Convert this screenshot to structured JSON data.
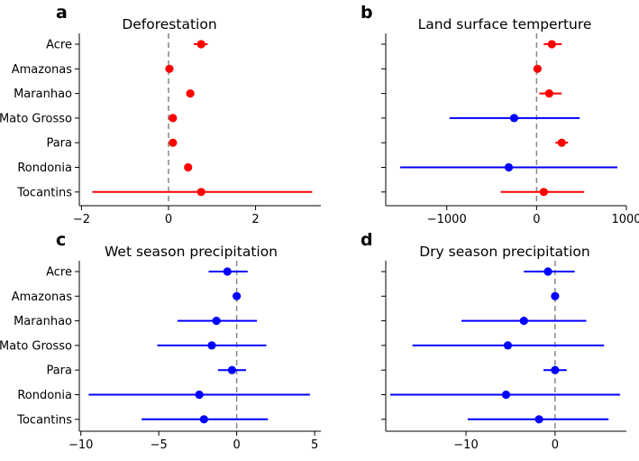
{
  "chart_data": [
    {
      "id": "a",
      "panel_letter": "a",
      "type": "scatter",
      "style": "point-with-error-bars",
      "title": "Deforestation",
      "categories": [
        "Acre",
        "Amazonas",
        "Maranhao",
        "Mato Grosso",
        "Para",
        "Rondonia",
        "Tocantins"
      ],
      "xlim": [
        -2.05,
        3.5
      ],
      "xticks": [
        -2,
        0,
        2
      ],
      "xtick_labels": [
        "−2",
        "0",
        "2"
      ],
      "show_y_labels": true,
      "points": [
        {
          "value": 0.75,
          "low": 0.58,
          "high": 0.9,
          "color": "#ff0000"
        },
        {
          "value": 0.02,
          "low": -0.02,
          "high": 0.06,
          "color": "#ff0000"
        },
        {
          "value": 0.5,
          "low": 0.46,
          "high": 0.54,
          "color": "#ff0000"
        },
        {
          "value": 0.1,
          "low": 0.06,
          "high": 0.14,
          "color": "#ff0000"
        },
        {
          "value": 0.1,
          "low": 0.06,
          "high": 0.14,
          "color": "#ff0000"
        },
        {
          "value": 0.45,
          "low": 0.41,
          "high": 0.49,
          "color": "#ff0000"
        },
        {
          "value": 0.75,
          "low": -1.75,
          "high": 3.3,
          "color": "#ff0000"
        }
      ]
    },
    {
      "id": "b",
      "panel_letter": "b",
      "type": "scatter",
      "style": "point-with-error-bars",
      "title": "Land surface temperture",
      "categories": [
        "Acre",
        "Amazonas",
        "Maranhao",
        "Mato Grosso",
        "Para",
        "Rondonia",
        "Tocantins"
      ],
      "xlim": [
        -1680,
        1000
      ],
      "xticks": [
        -1000,
        0,
        1000
      ],
      "xtick_labels": [
        "−1000",
        "0",
        "1000"
      ],
      "show_y_labels": false,
      "points": [
        {
          "value": 170,
          "low": 80,
          "high": 280,
          "color": "#ff0000"
        },
        {
          "value": 10,
          "low": -30,
          "high": 50,
          "color": "#ff0000"
        },
        {
          "value": 140,
          "low": 30,
          "high": 280,
          "color": "#ff0000"
        },
        {
          "value": -250,
          "low": -970,
          "high": 480,
          "color": "#0000ff"
        },
        {
          "value": 280,
          "low": 210,
          "high": 350,
          "color": "#ff0000"
        },
        {
          "value": -310,
          "low": -1520,
          "high": 900,
          "color": "#0000ff"
        },
        {
          "value": 80,
          "low": -400,
          "high": 530,
          "color": "#ff0000"
        }
      ]
    },
    {
      "id": "c",
      "panel_letter": "c",
      "type": "scatter",
      "style": "point-with-error-bars",
      "title": "Wet season precipitation",
      "categories": [
        "Acre",
        "Amazonas",
        "Maranhao",
        "Mato Grosso",
        "Para",
        "Rondonia",
        "Tocantins"
      ],
      "xlim": [
        -10.1,
        5.4
      ],
      "xticks": [
        -10,
        -5,
        0,
        5
      ],
      "xtick_labels": [
        "−10",
        "−5",
        "0",
        "5"
      ],
      "show_y_labels": true,
      "points": [
        {
          "value": -0.6,
          "low": -1.8,
          "high": 0.7,
          "color": "#0000ff"
        },
        {
          "value": 0.0,
          "low": -0.1,
          "high": 0.1,
          "color": "#0000ff"
        },
        {
          "value": -1.3,
          "low": -3.8,
          "high": 1.3,
          "color": "#0000ff"
        },
        {
          "value": -1.6,
          "low": -5.1,
          "high": 1.9,
          "color": "#0000ff"
        },
        {
          "value": -0.3,
          "low": -1.2,
          "high": 0.6,
          "color": "#0000ff"
        },
        {
          "value": -2.4,
          "low": -9.5,
          "high": 4.7,
          "color": "#0000ff"
        },
        {
          "value": -2.1,
          "low": -6.1,
          "high": 2.0,
          "color": "#0000ff"
        }
      ]
    },
    {
      "id": "d",
      "panel_letter": "d",
      "type": "scatter",
      "style": "point-with-error-bars",
      "title": "Dry season precipitation",
      "categories": [
        "Acre",
        "Amazonas",
        "Maranhao",
        "Mato Grosso",
        "Para",
        "Rondonia",
        "Tocantins"
      ],
      "xlim": [
        -19,
        8
      ],
      "xticks": [
        -10,
        0
      ],
      "xtick_labels": [
        "−10",
        "0"
      ],
      "show_y_labels": false,
      "points": [
        {
          "value": -0.8,
          "low": -3.5,
          "high": 2.2,
          "color": "#0000ff"
        },
        {
          "value": 0.0,
          "low": -0.2,
          "high": 0.2,
          "color": "#0000ff"
        },
        {
          "value": -3.5,
          "low": -10.5,
          "high": 3.5,
          "color": "#0000ff"
        },
        {
          "value": -5.3,
          "low": -16.0,
          "high": 5.5,
          "color": "#0000ff"
        },
        {
          "value": 0.0,
          "low": -1.3,
          "high": 1.3,
          "color": "#0000ff"
        },
        {
          "value": -5.5,
          "low": -18.5,
          "high": 7.3,
          "color": "#0000ff"
        },
        {
          "value": -1.8,
          "low": -9.8,
          "high": 6.0,
          "color": "#0000ff"
        }
      ]
    }
  ]
}
